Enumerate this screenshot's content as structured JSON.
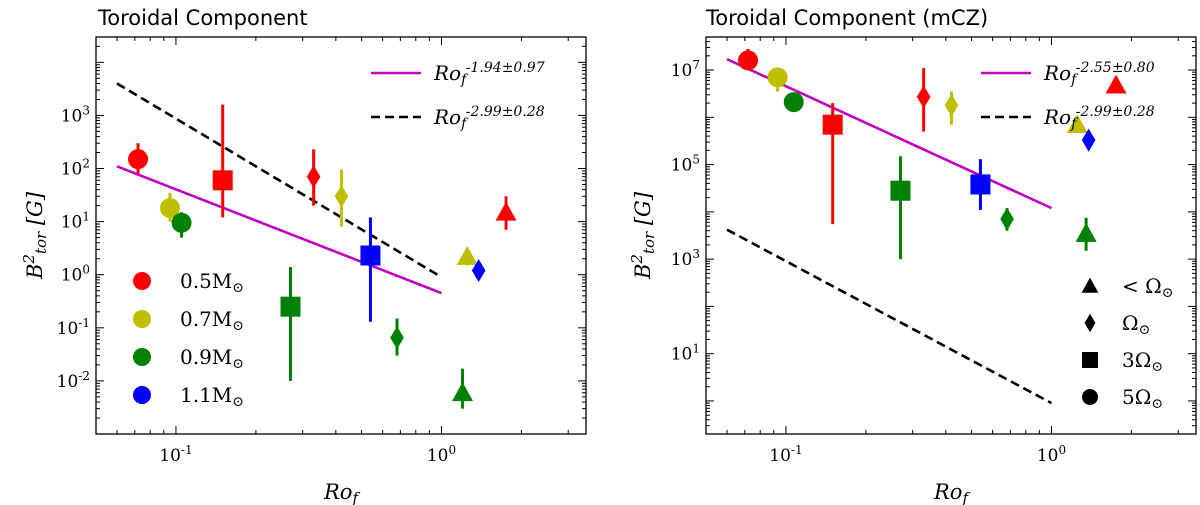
{
  "chart_data": [
    {
      "type": "scatter",
      "title": "Toroidal Component",
      "xlabel": "Ro_f",
      "ylabel": "B^2_tor [G]",
      "xscale": "log",
      "yscale": "log",
      "xlim": [
        0.05,
        3.5
      ],
      "ylim": [
        0.001,
        30000
      ],
      "x_ticks": [
        {
          "value": 0.1,
          "label": "10^-1"
        },
        {
          "value": 1,
          "label": "10^0"
        }
      ],
      "y_ticks": [
        {
          "value": 0.01,
          "label": "10^-2"
        },
        {
          "value": 0.1,
          "label": "10^-1"
        },
        {
          "value": 1,
          "label": "10^0"
        },
        {
          "value": 10,
          "label": "10^1"
        },
        {
          "value": 100,
          "label": "10^2"
        },
        {
          "value": 1000,
          "label": "10^3"
        }
      ],
      "fit_lines": [
        {
          "name": "Ro_f^{-1.94±0.97}",
          "style": "solid",
          "color": "#bf00bf",
          "x": [
            0.06,
            1.0
          ],
          "y": [
            110,
            0.45
          ]
        },
        {
          "name": "Ro_f^{-2.99±0.28}",
          "style": "dashed",
          "color": "#000000",
          "x": [
            0.06,
            1.0
          ],
          "y": [
            4000,
            0.9
          ]
        }
      ],
      "legend_position": "lower-left",
      "legend_entries": [
        {
          "label": "0.5M_⊙",
          "color": "#ff0000"
        },
        {
          "label": "0.7M_⊙",
          "color": "#bfbf00"
        },
        {
          "label": "0.9M_⊙",
          "color": "#008000"
        },
        {
          "label": "1.1M_⊙",
          "color": "#0000ff"
        }
      ],
      "points": [
        {
          "x": 0.072,
          "y": 150,
          "ylo": 80,
          "yhi": 300,
          "color": "#ff0000",
          "marker": "circle"
        },
        {
          "x": 0.15,
          "y": 60,
          "ylo": 12,
          "yhi": 1600,
          "color": "#ff0000",
          "marker": "square"
        },
        {
          "x": 0.33,
          "y": 70,
          "ylo": 20,
          "yhi": 230,
          "color": "#ff0000",
          "marker": "diamond"
        },
        {
          "x": 1.75,
          "y": 15,
          "ylo": 7,
          "yhi": 30,
          "color": "#ff0000",
          "marker": "triangle"
        },
        {
          "x": 0.095,
          "y": 18,
          "ylo": 10,
          "yhi": 35,
          "color": "#bfbf00",
          "marker": "circle"
        },
        {
          "x": 0.42,
          "y": 30,
          "ylo": 8,
          "yhi": 95,
          "color": "#bfbf00",
          "marker": "diamond"
        },
        {
          "x": 1.25,
          "y": 2.2,
          "ylo": 1.5,
          "yhi": 3.2,
          "color": "#bfbf00",
          "marker": "triangle"
        },
        {
          "x": 0.105,
          "y": 9.5,
          "ylo": 5,
          "yhi": 15,
          "color": "#008000",
          "marker": "circle"
        },
        {
          "x": 0.27,
          "y": 0.25,
          "ylo": 0.01,
          "yhi": 1.4,
          "color": "#008000",
          "marker": "square"
        },
        {
          "x": 0.68,
          "y": 0.065,
          "ylo": 0.03,
          "yhi": 0.15,
          "color": "#008000",
          "marker": "diamond"
        },
        {
          "x": 1.2,
          "y": 0.006,
          "ylo": 0.003,
          "yhi": 0.017,
          "color": "#008000",
          "marker": "triangle"
        },
        {
          "x": 0.54,
          "y": 2.3,
          "ylo": 0.13,
          "yhi": 12,
          "color": "#0000ff",
          "marker": "square"
        },
        {
          "x": 1.38,
          "y": 1.2,
          "ylo": 0.8,
          "yhi": 1.6,
          "color": "#0000ff",
          "marker": "diamond"
        }
      ]
    },
    {
      "type": "scatter",
      "title": "Toroidal Component (mCZ)",
      "xlabel": "Ro_f",
      "ylabel": "B^2_tor [G]",
      "xscale": "log",
      "yscale": "log",
      "xlim": [
        0.05,
        3.5
      ],
      "ylim": [
        0.2,
        50000000
      ],
      "x_ticks": [
        {
          "value": 0.1,
          "label": "10^-1"
        },
        {
          "value": 1,
          "label": "10^0"
        }
      ],
      "y_ticks": [
        {
          "value": 10,
          "label": "10^1"
        },
        {
          "value": 1000,
          "label": "10^3"
        },
        {
          "value": 100000,
          "label": "10^5"
        },
        {
          "value": 10000000,
          "label": "10^7"
        }
      ],
      "fit_lines": [
        {
          "name": "Ro_f^{-2.55±0.80}",
          "style": "solid",
          "color": "#bf00bf",
          "x": [
            0.06,
            1.0
          ],
          "y": [
            17000000,
            12000
          ]
        },
        {
          "name": "Ro_f^{-2.99±0.28}",
          "style": "dashed",
          "color": "#000000",
          "x": [
            0.06,
            1.0
          ],
          "y": [
            4200,
            0.9
          ]
        }
      ],
      "legend_position": "lower-right",
      "legend_entries": [
        {
          "label": "< Ω_⊙",
          "marker": "triangle"
        },
        {
          "label": "Ω_⊙",
          "marker": "diamond"
        },
        {
          "label": "3Ω_⊙",
          "marker": "square"
        },
        {
          "label": "5Ω_⊙",
          "marker": "circle"
        }
      ],
      "points": [
        {
          "x": 0.072,
          "y": 16000000,
          "ylo": 10000000,
          "yhi": 28000000,
          "color": "#ff0000",
          "marker": "circle"
        },
        {
          "x": 0.15,
          "y": 700000,
          "ylo": 5500,
          "yhi": 2000000,
          "color": "#ff0000",
          "marker": "square"
        },
        {
          "x": 0.33,
          "y": 2700000,
          "ylo": 500000,
          "yhi": 11000000,
          "color": "#ff0000",
          "marker": "diamond"
        },
        {
          "x": 1.75,
          "y": 4800000,
          "ylo": 4000000,
          "yhi": 5600000,
          "color": "#ff0000",
          "marker": "triangle"
        },
        {
          "x": 0.093,
          "y": 7000000,
          "ylo": 3500000,
          "yhi": 10000000,
          "color": "#bfbf00",
          "marker": "circle"
        },
        {
          "x": 0.42,
          "y": 1800000,
          "ylo": 700000,
          "yhi": 3500000,
          "color": "#bfbf00",
          "marker": "diamond"
        },
        {
          "x": 1.25,
          "y": 700000,
          "ylo": 500000,
          "yhi": 900000,
          "color": "#bfbf00",
          "marker": "triangle"
        },
        {
          "x": 0.107,
          "y": 2100000,
          "ylo": 1500000,
          "yhi": 3000000,
          "color": "#008000",
          "marker": "circle"
        },
        {
          "x": 0.27,
          "y": 28000,
          "ylo": 1000,
          "yhi": 150000,
          "color": "#008000",
          "marker": "square"
        },
        {
          "x": 0.68,
          "y": 7000,
          "ylo": 4000,
          "yhi": 12000,
          "color": "#008000",
          "marker": "diamond"
        },
        {
          "x": 1.35,
          "y": 3500,
          "ylo": 1500,
          "yhi": 7500,
          "color": "#008000",
          "marker": "triangle"
        },
        {
          "x": 0.54,
          "y": 38000,
          "ylo": 11000,
          "yhi": 130000,
          "color": "#0000ff",
          "marker": "square"
        },
        {
          "x": 1.38,
          "y": 330000,
          "ylo": 250000,
          "yhi": 400000,
          "color": "#0000ff",
          "marker": "diamond"
        }
      ]
    }
  ]
}
